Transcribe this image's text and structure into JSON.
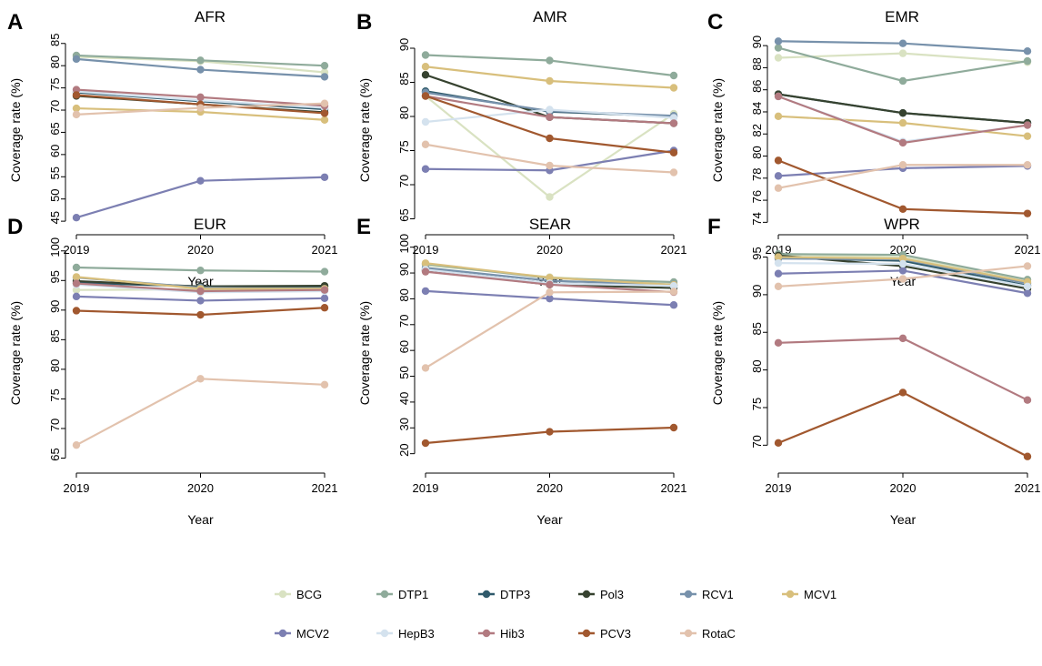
{
  "series_meta": [
    {
      "name": "BCG",
      "color": "#d9e2c2"
    },
    {
      "name": "DTP1",
      "color": "#8fab9b"
    },
    {
      "name": "DTP3",
      "color": "#2f5a6b"
    },
    {
      "name": "Pol3",
      "color": "#36422f"
    },
    {
      "name": "RCV1",
      "color": "#7791ab"
    },
    {
      "name": "MCV1",
      "color": "#d8bf7c"
    },
    {
      "name": "MCV2",
      "color": "#7c7fb2"
    },
    {
      "name": "HepB3",
      "color": "#d4e2ee"
    },
    {
      "name": "Hib3",
      "color": "#b27a80"
    },
    {
      "name": "PCV3",
      "color": "#a1582f"
    },
    {
      "name": "RotaC",
      "color": "#e2c2ad"
    }
  ],
  "chart_data": [
    {
      "type": "line",
      "letter": "A",
      "title": "AFR",
      "xlabel": "Year",
      "ylabel": "Coverage rate (%)",
      "x": [
        "2019",
        "2020",
        "2021"
      ],
      "ylim": [
        44,
        87
      ],
      "yticks": [
        45,
        50,
        55,
        60,
        65,
        70,
        75,
        80,
        85
      ],
      "series": [
        {
          "name": "BCG",
          "values": [
            82.0,
            81.0,
            78.5
          ]
        },
        {
          "name": "DTP1",
          "values": [
            82.3,
            81.2,
            80.0
          ]
        },
        {
          "name": "DTP3",
          "values": [
            74.0,
            72.0,
            70.2
          ]
        },
        {
          "name": "Pol3",
          "values": [
            73.2,
            71.3,
            69.5
          ]
        },
        {
          "name": "RCV1",
          "values": [
            81.5,
            79.1,
            77.5
          ]
        },
        {
          "name": "MCV1",
          "values": [
            70.4,
            69.6,
            67.8
          ]
        },
        {
          "name": "MCV2",
          "values": [
            45.8,
            54.1,
            54.9
          ]
        },
        {
          "name": "HepB3",
          "values": [
            74.2,
            72.2,
            70.5
          ]
        },
        {
          "name": "Hib3",
          "values": [
            74.6,
            72.9,
            71.0
          ]
        },
        {
          "name": "PCV3",
          "values": [
            73.4,
            71.3,
            69.3
          ]
        },
        {
          "name": "RotaC",
          "values": [
            69.0,
            70.5,
            71.5
          ]
        }
      ]
    },
    {
      "type": "line",
      "letter": "B",
      "title": "AMR",
      "xlabel": "Year",
      "ylabel": "Coverage rate (%)",
      "x": [
        "2019",
        "2020",
        "2021"
      ],
      "ylim": [
        64,
        92
      ],
      "yticks": [
        65,
        70,
        75,
        80,
        85,
        90
      ],
      "series": [
        {
          "name": "BCG",
          "values": [
            83.0,
            68.2,
            80.4
          ]
        },
        {
          "name": "DTP1",
          "values": [
            89.0,
            88.2,
            86.0
          ]
        },
        {
          "name": "DTP3",
          "values": [
            83.7,
            80.7,
            80.0
          ]
        },
        {
          "name": "Pol3",
          "values": [
            86.1,
            79.9,
            79.0
          ]
        },
        {
          "name": "RCV1",
          "values": [
            83.5,
            80.8,
            80.1
          ]
        },
        {
          "name": "MCV1",
          "values": [
            87.3,
            85.2,
            84.2
          ]
        },
        {
          "name": "MCV2",
          "values": [
            72.3,
            72.1,
            75.0
          ]
        },
        {
          "name": "HepB3",
          "values": [
            79.2,
            81.0,
            79.8
          ]
        },
        {
          "name": "Hib3",
          "values": [
            83.0,
            79.9,
            79.0
          ]
        },
        {
          "name": "PCV3",
          "values": [
            83.0,
            76.8,
            74.7
          ]
        },
        {
          "name": "RotaC",
          "values": [
            75.9,
            72.8,
            71.8
          ]
        }
      ]
    },
    {
      "type": "line",
      "letter": "C",
      "title": "EMR",
      "xlabel": "Year",
      "ylabel": "Coverage rate (%)",
      "x": [
        "2019",
        "2020",
        "2021"
      ],
      "ylim": [
        73.7,
        91
      ],
      "yticks": [
        74,
        76,
        78,
        80,
        82,
        84,
        86,
        88,
        90
      ],
      "series": [
        {
          "name": "BCG",
          "values": [
            88.9,
            89.3,
            88.5
          ]
        },
        {
          "name": "DTP1",
          "values": [
            89.8,
            86.8,
            88.6
          ]
        },
        {
          "name": "DTP3",
          "values": [
            85.6,
            83.9,
            83.0
          ]
        },
        {
          "name": "Pol3",
          "values": [
            85.6,
            83.9,
            83.0
          ]
        },
        {
          "name": "RCV1",
          "values": [
            90.4,
            90.2,
            89.5
          ]
        },
        {
          "name": "MCV1",
          "values": [
            83.6,
            83.0,
            81.8
          ]
        },
        {
          "name": "MCV2",
          "values": [
            78.2,
            78.9,
            79.1
          ]
        },
        {
          "name": "HepB3",
          "values": [
            85.4,
            81.3,
            82.8
          ]
        },
        {
          "name": "Hib3",
          "values": [
            85.4,
            81.2,
            82.8
          ]
        },
        {
          "name": "PCV3",
          "values": [
            79.6,
            75.2,
            74.8
          ]
        },
        {
          "name": "RotaC",
          "values": [
            77.1,
            79.2,
            79.2
          ]
        }
      ]
    },
    {
      "type": "line",
      "letter": "D",
      "title": "EUR",
      "xlabel": "Year",
      "ylabel": "Coverage rate (%)",
      "x": [
        "2019",
        "2020",
        "2021"
      ],
      "ylim": [
        64,
        101.5
      ],
      "yticks": [
        65,
        70,
        75,
        80,
        85,
        90,
        95,
        100
      ],
      "series": [
        {
          "name": "BCG",
          "values": [
            93.4,
            93.5,
            93.6
          ]
        },
        {
          "name": "DTP1",
          "values": [
            97.2,
            96.7,
            96.5
          ]
        },
        {
          "name": "DTP3",
          "values": [
            94.6,
            94.0,
            94.0
          ]
        },
        {
          "name": "Pol3",
          "values": [
            94.9,
            94.0,
            94.1
          ]
        },
        {
          "name": "RCV1",
          "values": [
            95.5,
            93.8,
            93.6
          ]
        },
        {
          "name": "MCV1",
          "values": [
            95.6,
            93.6,
            93.6
          ]
        },
        {
          "name": "MCV2",
          "values": [
            92.3,
            91.6,
            92.0
          ]
        },
        {
          "name": "HepB3",
          "values": [
            94.3,
            93.0,
            93.2
          ]
        },
        {
          "name": "Hib3",
          "values": [
            94.5,
            93.2,
            93.4
          ]
        },
        {
          "name": "PCV3",
          "values": [
            89.9,
            89.2,
            90.4
          ]
        },
        {
          "name": "RotaC",
          "values": [
            67.2,
            78.4,
            77.4
          ]
        }
      ]
    },
    {
      "type": "line",
      "letter": "E",
      "title": "SEAR",
      "xlabel": "Year",
      "ylabel": "Coverage rate (%)",
      "x": [
        "2019",
        "2020",
        "2021"
      ],
      "ylim": [
        16,
        102
      ],
      "yticks": [
        20,
        30,
        40,
        50,
        60,
        70,
        80,
        90,
        100
      ],
      "series": [
        {
          "name": "BCG",
          "values": [
            93.0,
            88.4,
            86.0
          ]
        },
        {
          "name": "DTP1",
          "values": [
            93.5,
            88.0,
            86.5
          ]
        },
        {
          "name": "DTP3",
          "values": [
            91.3,
            86.0,
            85.1
          ]
        },
        {
          "name": "Pol3",
          "values": [
            90.9,
            85.5,
            84.2
          ]
        },
        {
          "name": "RCV1",
          "values": [
            92.0,
            87.0,
            85.5
          ]
        },
        {
          "name": "MCV1",
          "values": [
            93.8,
            88.2,
            85.4
          ]
        },
        {
          "name": "MCV2",
          "values": [
            83.0,
            80.1,
            77.6
          ]
        },
        {
          "name": "HepB3",
          "values": [
            91.3,
            86.0,
            85.0
          ]
        },
        {
          "name": "Hib3",
          "values": [
            90.5,
            85.5,
            82.6
          ]
        },
        {
          "name": "PCV3",
          "values": [
            24.1,
            28.5,
            30.1
          ]
        },
        {
          "name": "RotaC",
          "values": [
            53.2,
            82.5,
            82.8
          ]
        }
      ]
    },
    {
      "type": "line",
      "letter": "F",
      "title": "WPR",
      "xlabel": "Year",
      "ylabel": "Coverage rate (%)",
      "x": [
        "2019",
        "2020",
        "2021"
      ],
      "ylim": [
        67.5,
        97
      ],
      "yticks": [
        70,
        75,
        80,
        85,
        90,
        95
      ],
      "series": [
        {
          "name": "BCG",
          "values": [
            95.3,
            95.0,
            92.0
          ]
        },
        {
          "name": "DTP1",
          "values": [
            95.4,
            95.3,
            92.0
          ]
        },
        {
          "name": "DTP3",
          "values": [
            94.9,
            94.5,
            91.2
          ]
        },
        {
          "name": "Pol3",
          "values": [
            95.2,
            93.8,
            90.8
          ]
        },
        {
          "name": "RCV1",
          "values": [
            94.8,
            94.7,
            91.5
          ]
        },
        {
          "name": "MCV1",
          "values": [
            95.0,
            94.8,
            91.7
          ]
        },
        {
          "name": "MCV2",
          "values": [
            92.8,
            93.2,
            90.2
          ]
        },
        {
          "name": "HepB3",
          "values": [
            94.2,
            94.1,
            91.1
          ]
        },
        {
          "name": "Hib3",
          "values": [
            83.6,
            84.2,
            76.0
          ]
        },
        {
          "name": "PCV3",
          "values": [
            70.3,
            77.0,
            68.5
          ]
        },
        {
          "name": "RotaC",
          "values": [
            91.1,
            92.1,
            93.8
          ]
        }
      ]
    }
  ]
}
